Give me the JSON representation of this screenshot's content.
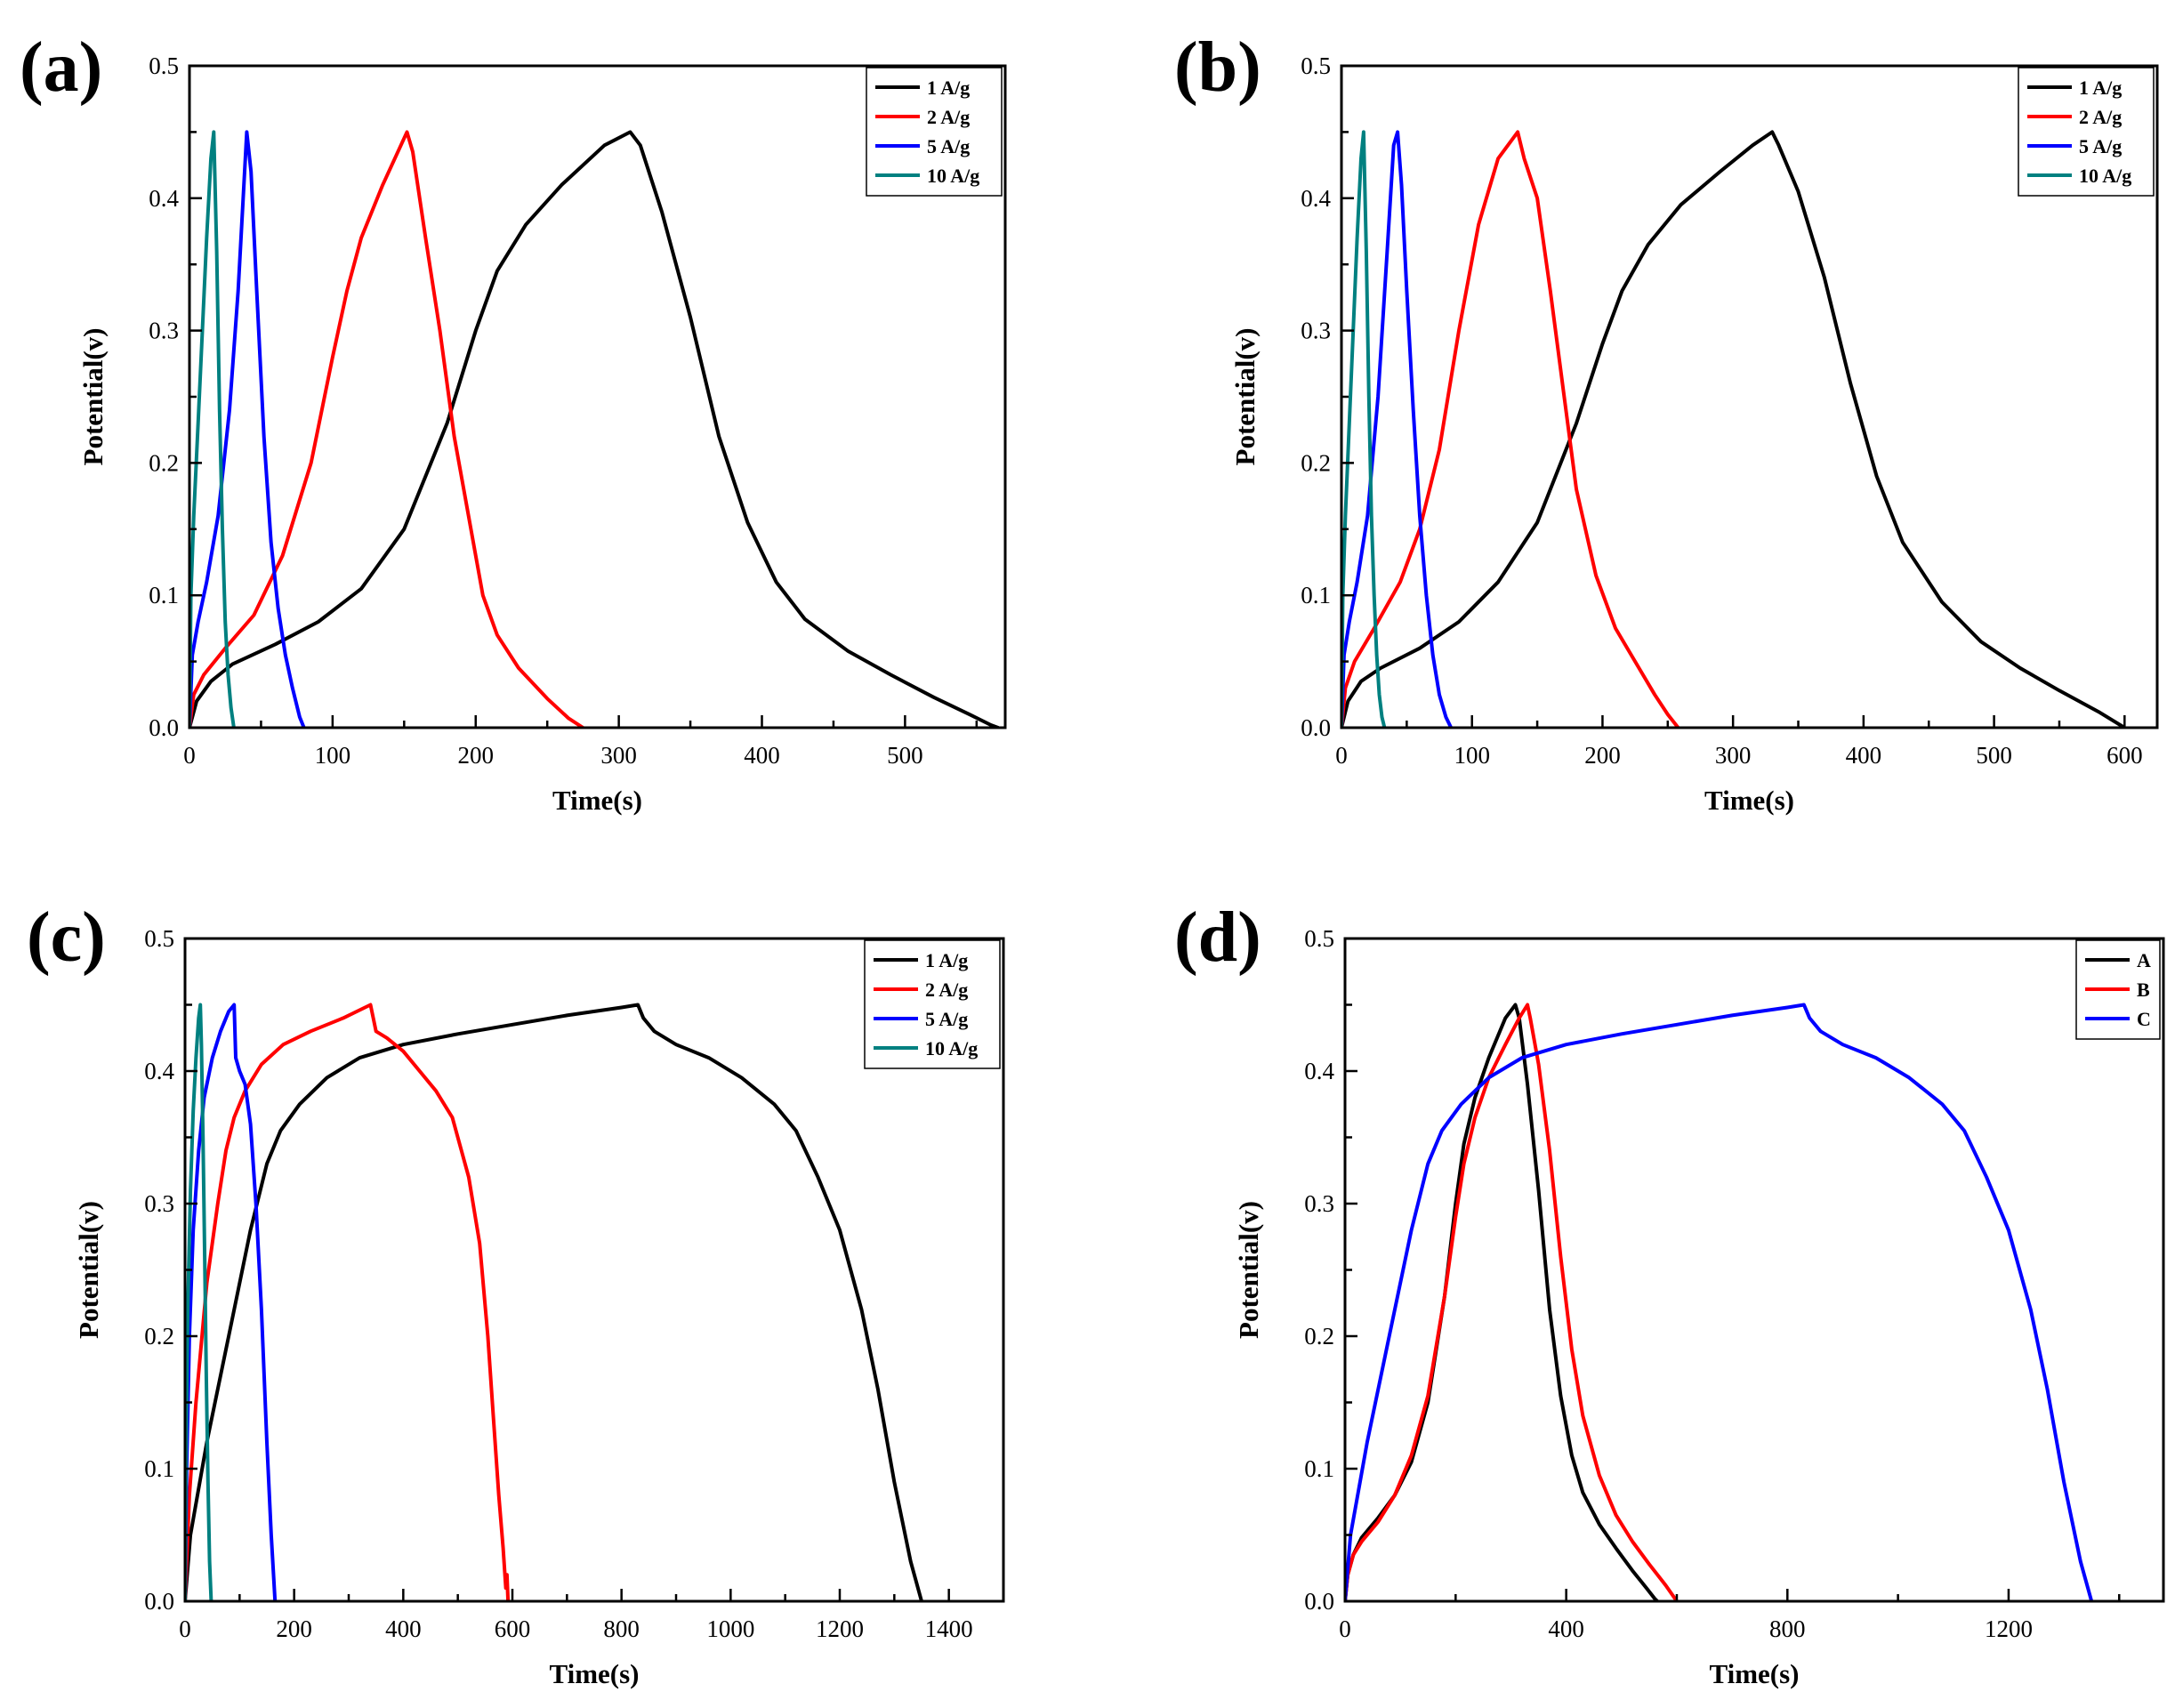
{
  "chart_data": [
    {
      "type": "line",
      "panel_label": "(a)",
      "xlabel": "Time(s)",
      "ylabel": "Potential(v)",
      "xlim": [
        0,
        570
      ],
      "ylim": [
        0,
        0.5
      ],
      "xticks": [
        0,
        100,
        200,
        300,
        400,
        500
      ],
      "yticks": [
        0.0,
        0.1,
        0.2,
        0.3,
        0.4,
        0.5
      ],
      "xtick_labels": [
        "0",
        "100",
        "200",
        "300",
        "400",
        "500"
      ],
      "ytick_labels": [
        "0.0",
        "0.1",
        "0.2",
        "0.3",
        "0.4",
        "0.5"
      ],
      "legend": {
        "position": "top-right"
      },
      "series": [
        {
          "name": "1 A/g",
          "color": "#000000",
          "x": [
            0,
            5,
            15,
            30,
            60,
            90,
            120,
            150,
            180,
            200,
            215,
            235,
            260,
            290,
            308,
            315,
            330,
            350,
            370,
            390,
            410,
            430,
            460,
            490,
            520,
            545,
            560,
            565
          ],
          "y": [
            0.0,
            0.02,
            0.035,
            0.048,
            0.063,
            0.08,
            0.105,
            0.15,
            0.23,
            0.3,
            0.345,
            0.38,
            0.41,
            0.44,
            0.45,
            0.44,
            0.39,
            0.31,
            0.22,
            0.155,
            0.11,
            0.082,
            0.058,
            0.04,
            0.023,
            0.01,
            0.002,
            0.0
          ]
        },
        {
          "name": "2 A/g",
          "color": "#ff0000",
          "x": [
            0,
            3,
            10,
            25,
            45,
            65,
            85,
            100,
            110,
            120,
            135,
            152,
            156,
            165,
            175,
            185,
            195,
            205,
            215,
            230,
            250,
            265,
            275
          ],
          "y": [
            0.0,
            0.025,
            0.04,
            0.06,
            0.085,
            0.13,
            0.2,
            0.28,
            0.33,
            0.37,
            0.41,
            0.45,
            0.435,
            0.37,
            0.3,
            0.22,
            0.16,
            0.1,
            0.07,
            0.045,
            0.022,
            0.007,
            0.0
          ]
        },
        {
          "name": "5 A/g",
          "color": "#0000ff",
          "x": [
            0,
            2,
            6,
            12,
            20,
            28,
            34,
            40,
            43,
            47,
            52,
            57,
            62,
            67,
            72,
            77,
            80
          ],
          "y": [
            0.0,
            0.055,
            0.08,
            0.11,
            0.16,
            0.24,
            0.33,
            0.45,
            0.42,
            0.33,
            0.22,
            0.14,
            0.09,
            0.055,
            0.03,
            0.008,
            0.0
          ]
        },
        {
          "name": "10 A/g",
          "color": "#008080",
          "x": [
            0,
            1,
            3,
            6,
            9,
            12,
            15,
            17,
            19,
            21,
            23,
            25,
            27,
            29,
            31
          ],
          "y": [
            0.0,
            0.1,
            0.16,
            0.23,
            0.3,
            0.37,
            0.43,
            0.45,
            0.36,
            0.24,
            0.15,
            0.08,
            0.04,
            0.015,
            0.0
          ]
        }
      ]
    },
    {
      "type": "line",
      "panel_label": "(b)",
      "xlabel": "Time(s)",
      "ylabel": "Potential(v)",
      "xlim": [
        0,
        625
      ],
      "ylim": [
        0,
        0.5
      ],
      "xticks": [
        0,
        100,
        200,
        300,
        400,
        500,
        600
      ],
      "yticks": [
        0.0,
        0.1,
        0.2,
        0.3,
        0.4,
        0.5
      ],
      "xtick_labels": [
        "0",
        "100",
        "200",
        "300",
        "400",
        "500",
        "600"
      ],
      "ytick_labels": [
        "0.0",
        "0.1",
        "0.2",
        "0.3",
        "0.4",
        "0.5"
      ],
      "legend": {
        "position": "top-right"
      },
      "series": [
        {
          "name": "1 A/g",
          "color": "#000000",
          "x": [
            0,
            5,
            15,
            30,
            60,
            90,
            120,
            150,
            180,
            200,
            215,
            235,
            260,
            290,
            315,
            330,
            335,
            350,
            370,
            390,
            410,
            430,
            460,
            490,
            520,
            550,
            580,
            600
          ],
          "y": [
            0.0,
            0.02,
            0.035,
            0.045,
            0.06,
            0.08,
            0.11,
            0.155,
            0.23,
            0.29,
            0.33,
            0.365,
            0.395,
            0.42,
            0.44,
            0.45,
            0.44,
            0.405,
            0.34,
            0.26,
            0.19,
            0.14,
            0.095,
            0.065,
            0.045,
            0.028,
            0.012,
            0.0
          ]
        },
        {
          "name": "2 A/g",
          "color": "#ff0000",
          "x": [
            0,
            3,
            10,
            25,
            45,
            60,
            75,
            90,
            105,
            120,
            135,
            140,
            150,
            160,
            170,
            180,
            195,
            210,
            225,
            240,
            250,
            258
          ],
          "y": [
            0.0,
            0.03,
            0.05,
            0.075,
            0.11,
            0.15,
            0.21,
            0.3,
            0.38,
            0.43,
            0.45,
            0.43,
            0.4,
            0.33,
            0.255,
            0.18,
            0.115,
            0.075,
            0.05,
            0.025,
            0.01,
            0.0
          ]
        },
        {
          "name": "5 A/g",
          "color": "#0000ff",
          "x": [
            0,
            2,
            6,
            12,
            20,
            28,
            35,
            40,
            43,
            46,
            50,
            55,
            60,
            65,
            70,
            75,
            80,
            84
          ],
          "y": [
            0.0,
            0.055,
            0.08,
            0.11,
            0.16,
            0.25,
            0.36,
            0.44,
            0.45,
            0.41,
            0.33,
            0.24,
            0.16,
            0.1,
            0.055,
            0.025,
            0.008,
            0.0
          ]
        },
        {
          "name": "10 A/g",
          "color": "#008080",
          "x": [
            0,
            1,
            3,
            6,
            9,
            12,
            15,
            17,
            19,
            21,
            23,
            25,
            27,
            29,
            31,
            33
          ],
          "y": [
            0.0,
            0.1,
            0.16,
            0.23,
            0.3,
            0.37,
            0.43,
            0.45,
            0.36,
            0.25,
            0.16,
            0.1,
            0.055,
            0.025,
            0.008,
            0.0
          ]
        }
      ]
    },
    {
      "type": "line",
      "panel_label": "(c)",
      "xlabel": "Time(s)",
      "ylabel": "Potential(v)",
      "xlim": [
        0,
        1500
      ],
      "ylim": [
        0,
        0.5
      ],
      "xticks": [
        0,
        200,
        400,
        600,
        800,
        1000,
        1200,
        1400
      ],
      "yticks": [
        0.0,
        0.1,
        0.2,
        0.3,
        0.4,
        0.5
      ],
      "xtick_labels": [
        "0",
        "200",
        "400",
        "600",
        "800",
        "1000",
        "1200",
        "1400"
      ],
      "ytick_labels": [
        "0.0",
        "0.1",
        "0.2",
        "0.3",
        "0.4",
        "0.5"
      ],
      "legend": {
        "position": "top-right"
      },
      "series": [
        {
          "name": "1 A/g",
          "color": "#000000",
          "x": [
            0,
            10,
            40,
            80,
            120,
            150,
            175,
            210,
            260,
            320,
            400,
            500,
            600,
            700,
            800,
            830,
            840,
            860,
            900,
            960,
            1020,
            1080,
            1120,
            1160,
            1200,
            1240,
            1270,
            1300,
            1330,
            1350
          ],
          "y": [
            0.0,
            0.05,
            0.12,
            0.2,
            0.28,
            0.33,
            0.355,
            0.375,
            0.395,
            0.41,
            0.42,
            0.428,
            0.435,
            0.442,
            0.448,
            0.45,
            0.44,
            0.43,
            0.42,
            0.41,
            0.395,
            0.375,
            0.355,
            0.32,
            0.28,
            0.22,
            0.16,
            0.09,
            0.03,
            0.0
          ]
        },
        {
          "name": "2 A/g",
          "color": "#ff0000",
          "x": [
            0,
            8,
            20,
            40,
            60,
            75,
            90,
            110,
            140,
            180,
            230,
            290,
            340,
            345,
            350,
            370,
            400,
            430,
            460,
            490,
            520,
            540,
            555,
            565,
            575,
            583,
            588,
            590,
            592
          ],
          "y": [
            0.0,
            0.08,
            0.15,
            0.24,
            0.3,
            0.34,
            0.365,
            0.385,
            0.405,
            0.42,
            0.43,
            0.44,
            0.45,
            0.44,
            0.43,
            0.425,
            0.415,
            0.4,
            0.385,
            0.365,
            0.32,
            0.27,
            0.2,
            0.14,
            0.08,
            0.04,
            0.01,
            0.02,
            0.0
          ]
        },
        {
          "name": "5 A/g",
          "color": "#0000ff",
          "x": [
            0,
            3,
            8,
            15,
            25,
            35,
            50,
            65,
            80,
            90,
            93,
            100,
            110,
            120,
            130,
            140,
            150,
            158,
            165
          ],
          "y": [
            0.0,
            0.1,
            0.2,
            0.28,
            0.34,
            0.38,
            0.41,
            0.43,
            0.445,
            0.45,
            0.41,
            0.4,
            0.39,
            0.36,
            0.3,
            0.22,
            0.12,
            0.05,
            0.0
          ]
        },
        {
          "name": "10 A/g",
          "color": "#008080",
          "x": [
            0,
            2,
            5,
            10,
            15,
            20,
            25,
            28,
            30,
            33,
            36,
            39,
            42,
            45,
            48
          ],
          "y": [
            0.0,
            0.12,
            0.22,
            0.31,
            0.37,
            0.41,
            0.44,
            0.45,
            0.42,
            0.35,
            0.26,
            0.17,
            0.09,
            0.03,
            0.0
          ]
        }
      ]
    },
    {
      "type": "line",
      "panel_label": "(d)",
      "xlabel": "Time(s)",
      "ylabel": "Potential(v)",
      "xlim": [
        0,
        1480
      ],
      "ylim": [
        0,
        0.5
      ],
      "xticks": [
        0,
        400,
        800,
        1200
      ],
      "yticks": [
        0.0,
        0.1,
        0.2,
        0.3,
        0.4,
        0.5
      ],
      "xtick_labels": [
        "0",
        "400",
        "800",
        "1200"
      ],
      "ytick_labels": [
        "0.0",
        "0.1",
        "0.2",
        "0.3",
        "0.4",
        "0.5"
      ],
      "legend": {
        "position": "top-right"
      },
      "series": [
        {
          "name": "A",
          "color": "#000000",
          "x": [
            0,
            5,
            15,
            30,
            60,
            90,
            120,
            150,
            180,
            200,
            215,
            235,
            260,
            290,
            308,
            315,
            330,
            350,
            370,
            390,
            410,
            430,
            460,
            490,
            520,
            545,
            560,
            565
          ],
          "y": [
            0.0,
            0.02,
            0.035,
            0.048,
            0.063,
            0.08,
            0.105,
            0.15,
            0.23,
            0.3,
            0.345,
            0.38,
            0.41,
            0.44,
            0.45,
            0.44,
            0.39,
            0.31,
            0.22,
            0.155,
            0.11,
            0.082,
            0.058,
            0.04,
            0.023,
            0.01,
            0.002,
            0.0
          ]
        },
        {
          "name": "B",
          "color": "#ff0000",
          "x": [
            0,
            5,
            15,
            30,
            60,
            90,
            120,
            150,
            180,
            200,
            215,
            235,
            260,
            290,
            315,
            330,
            335,
            350,
            370,
            390,
            410,
            430,
            460,
            490,
            520,
            550,
            580,
            600
          ],
          "y": [
            0.0,
            0.02,
            0.035,
            0.045,
            0.06,
            0.08,
            0.11,
            0.155,
            0.23,
            0.29,
            0.33,
            0.365,
            0.395,
            0.42,
            0.44,
            0.45,
            0.44,
            0.405,
            0.34,
            0.26,
            0.19,
            0.14,
            0.095,
            0.065,
            0.045,
            0.028,
            0.012,
            0.0
          ]
        },
        {
          "name": "C",
          "color": "#0000ff",
          "x": [
            0,
            10,
            40,
            80,
            120,
            150,
            175,
            210,
            260,
            320,
            400,
            500,
            600,
            700,
            800,
            830,
            840,
            860,
            900,
            960,
            1020,
            1080,
            1120,
            1160,
            1200,
            1240,
            1270,
            1300,
            1330,
            1350
          ],
          "y": [
            0.0,
            0.05,
            0.12,
            0.2,
            0.28,
            0.33,
            0.355,
            0.375,
            0.395,
            0.41,
            0.42,
            0.428,
            0.435,
            0.442,
            0.448,
            0.45,
            0.44,
            0.43,
            0.42,
            0.41,
            0.395,
            0.375,
            0.355,
            0.32,
            0.28,
            0.22,
            0.16,
            0.09,
            0.03,
            0.0
          ]
        }
      ]
    }
  ]
}
